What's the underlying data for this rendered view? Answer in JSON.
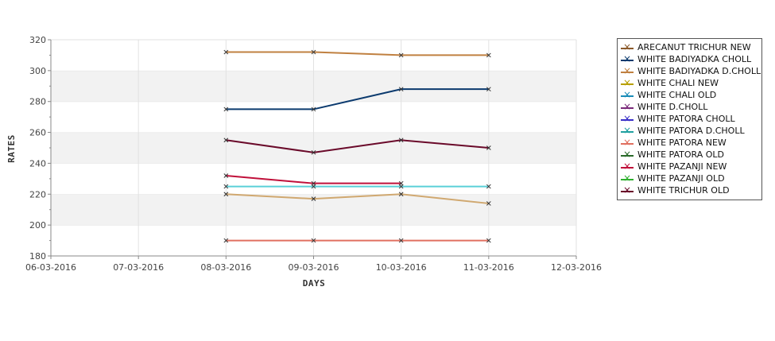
{
  "chart_data": {
    "type": "line",
    "xlabel": "DAYS",
    "ylabel": "RATES",
    "x_ticks": [
      "06-03-2016",
      "07-03-2016",
      "08-03-2016",
      "09-03-2016",
      "10-03-2016",
      "11-03-2016",
      "12-03-2016"
    ],
    "ylim": [
      180,
      320
    ],
    "y_ticks": [
      180,
      200,
      220,
      240,
      260,
      280,
      300,
      320
    ],
    "grid": "horizontal alternating bands plus vertical gridlines",
    "legend_position": "right",
    "series": [
      {
        "name": "ARECANUT TRICHUR NEW",
        "color": "#8b5a2b",
        "x": [],
        "values": []
      },
      {
        "name": "WHITE BADIYADKA CHOLL",
        "color": "#0b3a6e",
        "x": [
          "08-03-2016",
          "09-03-2016",
          "10-03-2016",
          "11-03-2016"
        ],
        "values": [
          275,
          275,
          288,
          288
        ]
      },
      {
        "name": "WHITE BADIYADKA D.CHOLL",
        "color": "#c08040",
        "x": [
          "08-03-2016",
          "09-03-2016",
          "10-03-2016",
          "11-03-2016"
        ],
        "values": [
          312,
          312,
          310,
          310
        ]
      },
      {
        "name": "WHITE CHALI NEW",
        "color": "#b8a000",
        "x": [],
        "values": []
      },
      {
        "name": "WHITE CHALI OLD",
        "color": "#1a8cb8",
        "x": [],
        "values": []
      },
      {
        "name": "WHITE D.CHOLL",
        "color": "#7a2a7a",
        "x": [],
        "values": []
      },
      {
        "name": "WHITE PATORA CHOLL",
        "color": "#3a30c8",
        "x": [],
        "values": []
      },
      {
        "name": "WHITE PATORA D.CHOLL",
        "color": "#20a0a0",
        "x": [],
        "values": []
      },
      {
        "name": "WHITE PATORA NEW",
        "color": "#e07060",
        "x": [
          "08-03-2016",
          "09-03-2016",
          "10-03-2016",
          "11-03-2016"
        ],
        "values": [
          190,
          190,
          190,
          190
        ]
      },
      {
        "name": "WHITE PATORA OLD",
        "color": "#2a6a2a",
        "x": [],
        "values": []
      },
      {
        "name": "WHITE PAZANJI NEW",
        "color": "#c0103a",
        "x": [
          "08-03-2016",
          "09-03-2016",
          "10-03-2016"
        ],
        "values": [
          232,
          227,
          227
        ]
      },
      {
        "name": "WHITE PAZANJI OLD",
        "color": "#30b030",
        "x": [],
        "values": []
      },
      {
        "name": "WHITE TRICHUR OLD",
        "color": "#6a0a2a",
        "x": [
          "08-03-2016",
          "09-03-2016",
          "10-03-2016",
          "11-03-2016"
        ],
        "values": [
          255,
          247,
          255,
          250
        ]
      },
      {
        "name": "",
        "color": "#5ad0d8",
        "x": [
          "08-03-2016",
          "09-03-2016",
          "10-03-2016",
          "11-03-2016"
        ],
        "values": [
          225,
          225,
          225,
          225
        ]
      },
      {
        "name": "",
        "color": "#d0a870",
        "x": [
          "08-03-2016",
          "09-03-2016",
          "10-03-2016",
          "11-03-2016"
        ],
        "values": [
          220,
          217,
          220,
          214
        ]
      }
    ]
  }
}
